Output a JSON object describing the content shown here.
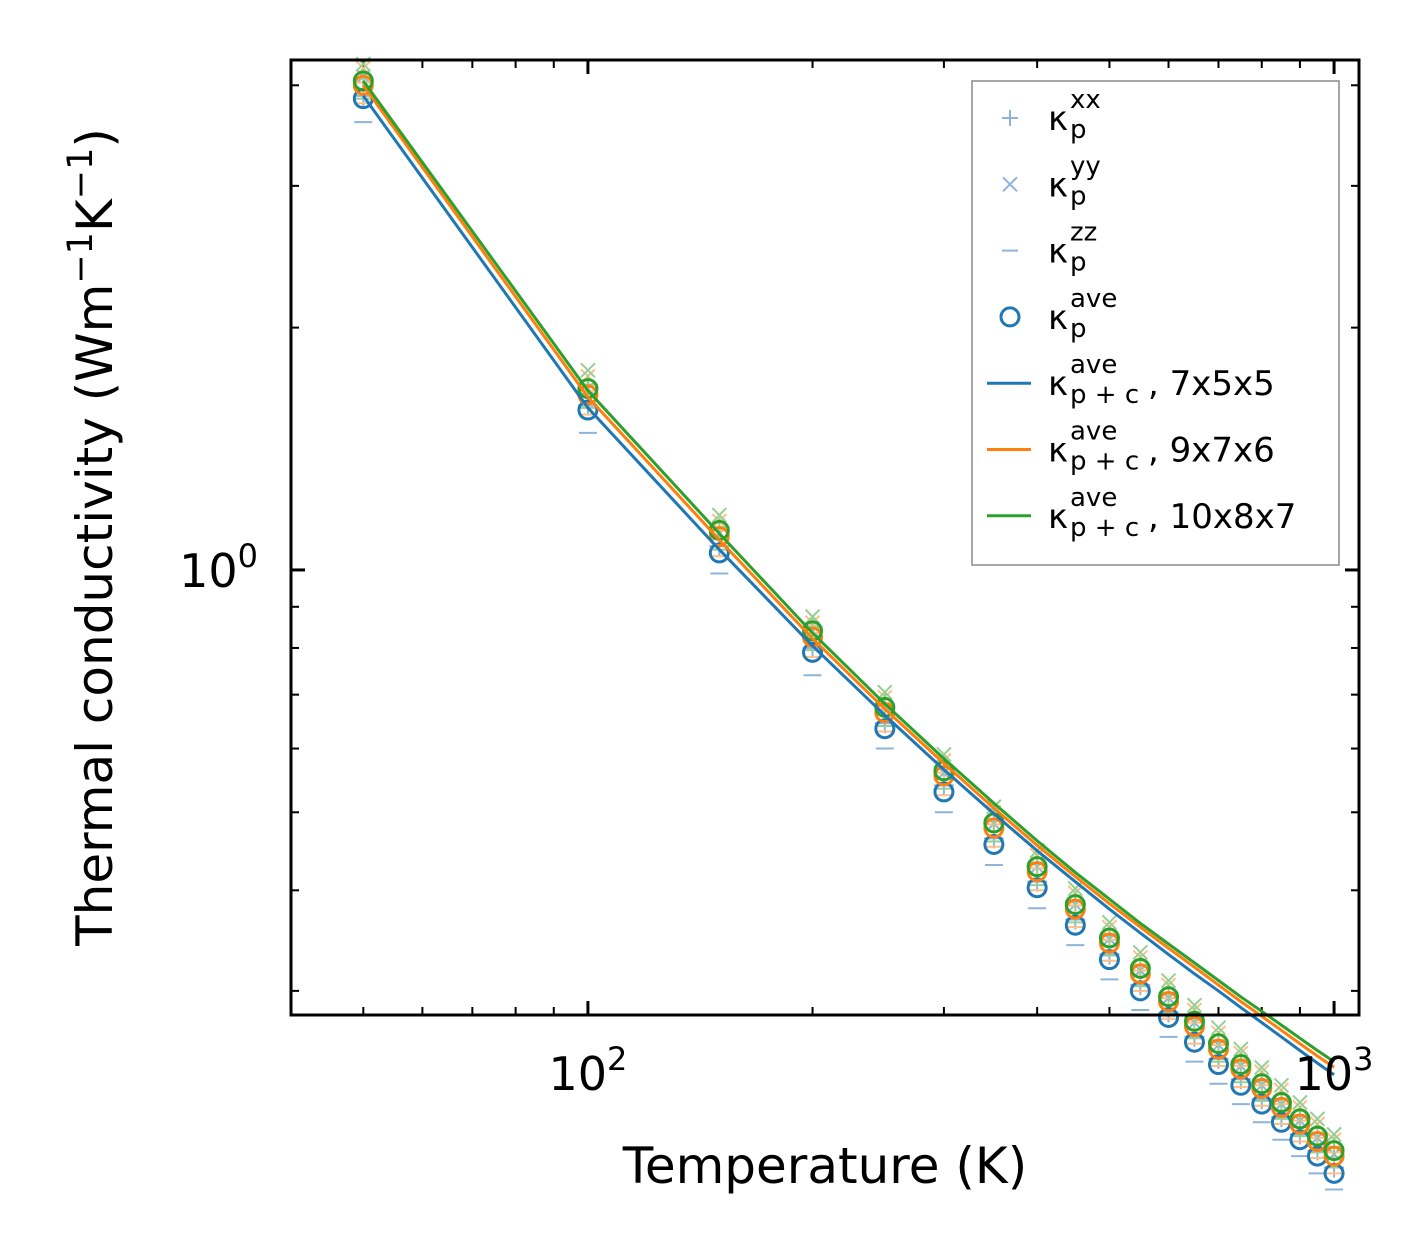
{
  "chart_data": {
    "type": "scatter",
    "xlabel": "Temperature (K)",
    "ylabel_parts": [
      "Thermal conductivity (Wm",
      "−1",
      "K",
      "−1",
      ")"
    ],
    "xscale": "log",
    "yscale": "log",
    "xlim": [
      40,
      1080
    ],
    "ylim": [
      0.28,
      4.3
    ],
    "x_ticks": [
      {
        "value": 100,
        "base": "10",
        "exp": "2"
      },
      {
        "value": 1000,
        "base": "10",
        "exp": "3"
      }
    ],
    "y_ticks": [
      {
        "value": 1,
        "base": "10",
        "exp": "0"
      }
    ],
    "legend_position": "top-right",
    "colors": {
      "c7": "#1f77b4",
      "c9": "#ff7f0e",
      "c10": "#2ca02c",
      "light_blue": "#8fb4d9",
      "light_orange": "#ffbf86",
      "light_green": "#95cf95"
    },
    "temperatures": [
      50,
      100,
      150,
      200,
      250,
      300,
      350,
      400,
      450,
      500,
      550,
      600,
      650,
      700,
      750,
      800,
      850,
      900,
      950,
      1000
    ],
    "series": [
      {
        "name": "7x5x5",
        "color": "#1f77b4",
        "marker_color": "#8fb4d9",
        "kave": [
          3.85,
          1.58,
          1.05,
          0.79,
          0.635,
          0.53,
          0.456,
          0.403,
          0.362,
          0.328,
          0.3,
          0.278,
          0.259,
          0.243,
          0.229,
          0.217,
          0.206,
          0.196,
          0.187,
          0.178
        ],
        "kxx": [
          3.88,
          1.6,
          1.07,
          0.8,
          0.645,
          0.54,
          0.464,
          0.41,
          0.368,
          0.333,
          0.305,
          0.282,
          0.263,
          0.247,
          0.233,
          0.22,
          0.209,
          0.199,
          0.19,
          0.181
        ],
        "kyy": [
          4.1,
          1.68,
          1.11,
          0.84,
          0.675,
          0.56,
          0.484,
          0.428,
          0.384,
          0.348,
          0.318,
          0.294,
          0.274,
          0.257,
          0.242,
          0.229,
          0.217,
          0.207,
          0.197,
          0.188
        ],
        "kzz": [
          3.6,
          1.48,
          0.99,
          0.74,
          0.6,
          0.5,
          0.43,
          0.38,
          0.342,
          0.31,
          0.284,
          0.263,
          0.245,
          0.23,
          0.217,
          0.206,
          0.196,
          0.187,
          0.178,
          0.17
        ],
        "kpc": [
          3.88,
          1.59,
          1.06,
          0.805,
          0.66,
          0.565,
          0.498,
          0.448,
          0.41,
          0.379,
          0.354,
          0.333,
          0.315,
          0.3,
          0.286,
          0.274,
          0.263,
          0.253,
          0.244,
          0.236
        ]
      },
      {
        "name": "9x7x6",
        "color": "#ff7f0e",
        "marker_color": "#ffbf86",
        "kave": [
          4.0,
          1.65,
          1.1,
          0.825,
          0.665,
          0.555,
          0.478,
          0.422,
          0.379,
          0.344,
          0.315,
          0.291,
          0.271,
          0.254,
          0.24,
          0.227,
          0.215,
          0.205,
          0.195,
          0.187
        ],
        "kxx": [
          4.03,
          1.67,
          1.12,
          0.835,
          0.672,
          0.56,
          0.483,
          0.426,
          0.383,
          0.347,
          0.318,
          0.294,
          0.274,
          0.257,
          0.242,
          0.229,
          0.217,
          0.207,
          0.197,
          0.189
        ],
        "kyy": [
          4.2,
          1.74,
          1.15,
          0.86,
          0.695,
          0.58,
          0.5,
          0.442,
          0.397,
          0.36,
          0.33,
          0.305,
          0.284,
          0.266,
          0.251,
          0.238,
          0.226,
          0.215,
          0.205,
          0.196
        ],
        "kzz": [
          3.8,
          1.56,
          1.04,
          0.78,
          0.63,
          0.525,
          0.453,
          0.4,
          0.36,
          0.327,
          0.3,
          0.277,
          0.258,
          0.242,
          0.228,
          0.216,
          0.205,
          0.195,
          0.186,
          0.178
        ],
        "kpc": [
          4.0,
          1.64,
          1.09,
          0.822,
          0.672,
          0.575,
          0.506,
          0.455,
          0.416,
          0.385,
          0.36,
          0.339,
          0.321,
          0.305,
          0.291,
          0.279,
          0.268,
          0.258,
          0.249,
          0.241
        ]
      },
      {
        "name": "10x8x7",
        "color": "#2ca02c",
        "marker_color": "#95cf95",
        "kave": [
          4.05,
          1.68,
          1.12,
          0.84,
          0.675,
          0.563,
          0.485,
          0.428,
          0.384,
          0.349,
          0.32,
          0.295,
          0.275,
          0.258,
          0.243,
          0.23,
          0.218,
          0.208,
          0.198,
          0.19
        ],
        "kxx": [
          4.08,
          1.7,
          1.13,
          0.85,
          0.682,
          0.57,
          0.49,
          0.432,
          0.388,
          0.352,
          0.323,
          0.298,
          0.278,
          0.26,
          0.245,
          0.232,
          0.22,
          0.21,
          0.2,
          0.192
        ],
        "kyy": [
          4.25,
          1.77,
          1.17,
          0.875,
          0.705,
          0.59,
          0.508,
          0.448,
          0.402,
          0.365,
          0.335,
          0.309,
          0.288,
          0.27,
          0.254,
          0.241,
          0.229,
          0.218,
          0.208,
          0.199
        ],
        "kzz": [
          3.85,
          1.59,
          1.06,
          0.795,
          0.64,
          0.535,
          0.46,
          0.406,
          0.365,
          0.332,
          0.304,
          0.281,
          0.262,
          0.245,
          0.231,
          0.219,
          0.208,
          0.198,
          0.189,
          0.181
        ],
        "kpc": [
          4.05,
          1.67,
          1.11,
          0.835,
          0.682,
          0.583,
          0.513,
          0.461,
          0.421,
          0.39,
          0.364,
          0.343,
          0.325,
          0.309,
          0.295,
          0.283,
          0.272,
          0.262,
          0.253,
          0.245
        ]
      }
    ],
    "legend": [
      {
        "kind": "plus",
        "color_key": "light_blue",
        "base": "κ",
        "sub": "p",
        "sup": "xx",
        "suffix": ""
      },
      {
        "kind": "x",
        "color_key": "light_blue",
        "base": "κ",
        "sub": "p",
        "sup": "yy",
        "suffix": ""
      },
      {
        "kind": "hline",
        "color_key": "light_blue",
        "base": "κ",
        "sub": "p",
        "sup": "zz",
        "suffix": ""
      },
      {
        "kind": "circle",
        "color_key": "c7",
        "base": "κ",
        "sub": "p",
        "sup": "ave",
        "suffix": ""
      },
      {
        "kind": "line",
        "color_key": "c7",
        "base": "κ",
        "sub": "p + c",
        "sup": "ave",
        "suffix": ", 7x5x5"
      },
      {
        "kind": "line",
        "color_key": "c9",
        "base": "κ",
        "sub": "p + c",
        "sup": "ave",
        "suffix": ", 9x7x6"
      },
      {
        "kind": "line",
        "color_key": "c10",
        "base": "κ",
        "sub": "p + c",
        "sup": "ave",
        "suffix": ", 10x8x7"
      }
    ]
  }
}
